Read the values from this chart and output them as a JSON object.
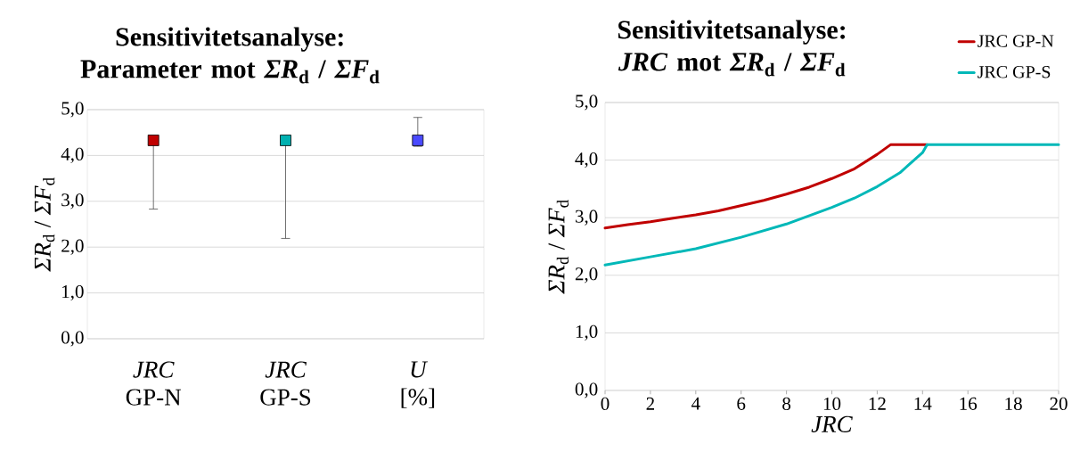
{
  "chart_data": [
    {
      "type": "scatter",
      "title": "Sensitivitetsanalyse: Parameter mot *ΣR*$_{d}$ / *ΣF*$_{d}$",
      "ylabel": "*ΣR*$_{d}$ / *ΣF*$_{d}$",
      "categories": [
        "*JRC* GP-N",
        "*JRC* GP-S",
        "*U* [%]"
      ],
      "values": [
        4.33,
        4.33,
        4.33
      ],
      "colors": [
        "#c00000",
        "#00b0b0",
        "#4a4aff"
      ],
      "errors": [
        [
          2.83,
          4.33
        ],
        [
          2.19,
          4.33
        ],
        [
          4.2,
          4.83
        ]
      ],
      "marker": "square",
      "grid": "y",
      "ylim": [
        0,
        5
      ],
      "yticks": [
        {
          "value": 0,
          "label": "0,0"
        },
        {
          "value": 1,
          "label": "1,0"
        },
        {
          "value": 2,
          "label": "2,0"
        },
        {
          "value": 3,
          "label": "3,0"
        },
        {
          "value": 4,
          "label": "4,0"
        },
        {
          "value": 5,
          "label": "5,0"
        }
      ]
    },
    {
      "type": "line",
      "title": "Sensitivitetsanalyse: *JRC* mot *ΣR*$_{d}$ / *ΣF*$_{d}$",
      "xlabel": "*JRC*",
      "ylabel": "*ΣR*$_{d}$ / *ΣF*$_{d}$",
      "series": [
        {
          "name": "JRC GP-N",
          "color": "#c00000",
          "x": [
            0,
            1,
            2,
            3,
            4,
            5,
            6,
            7,
            8,
            9,
            10,
            11,
            12,
            12.6,
            14.2
          ],
          "values": [
            2.82,
            2.88,
            2.93,
            2.99,
            3.05,
            3.12,
            3.21,
            3.3,
            3.41,
            3.53,
            3.68,
            3.85,
            4.1,
            4.27,
            4.27
          ]
        },
        {
          "name": "JRC GP-S",
          "color": "#00b8b8",
          "x": [
            0,
            2,
            4,
            6,
            8,
            10,
            11,
            12,
            13,
            14,
            14.2,
            20
          ],
          "values": [
            2.18,
            2.32,
            2.46,
            2.66,
            2.89,
            3.18,
            3.34,
            3.54,
            3.78,
            4.13,
            4.27,
            4.27
          ]
        }
      ],
      "legend": "top right",
      "grid": "y",
      "xlim": [
        0,
        20
      ],
      "xticks": [
        0,
        2,
        4,
        6,
        8,
        10,
        12,
        14,
        16,
        18,
        20
      ],
      "ylim": [
        0,
        5
      ],
      "yticks": [
        {
          "value": 0,
          "label": "0,0"
        },
        {
          "value": 1,
          "label": "1,0"
        },
        {
          "value": 2,
          "label": "2,0"
        },
        {
          "value": 3,
          "label": "3,0"
        },
        {
          "value": 4,
          "label": "4,0"
        },
        {
          "value": 5,
          "label": "5,0"
        }
      ]
    }
  ]
}
